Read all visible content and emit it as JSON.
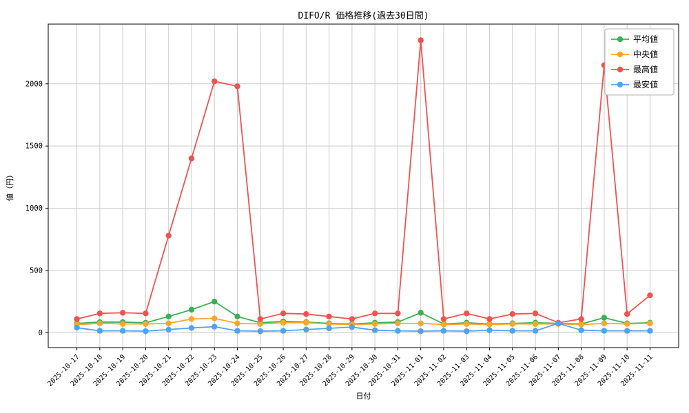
{
  "chart_data": {
    "type": "line",
    "title": "DIFO/R 価格推移(過去30日間)",
    "xlabel": "日付",
    "ylabel": "値（円）",
    "grid": true,
    "legend_position": "upper right",
    "ylim": [
      -120,
      2480
    ],
    "yticks": [
      0,
      500,
      1000,
      1500,
      2000
    ],
    "x_tick_labels": [
      "2025-10-17",
      "2025-10-18",
      "2025-10-19",
      "2025-10-20",
      "2025-10-21",
      "2025-10-22",
      "2025-10-23",
      "2025-10-24",
      "2025-10-25",
      "2025-10-26",
      "2025-10-27",
      "2025-10-28",
      "2025-10-29",
      "2025-10-30",
      "2025-10-31",
      "2025-11-01",
      "2025-11-02",
      "2025-11-03",
      "2025-11-04",
      "2025-11-05",
      "2025-11-06",
      "2025-11-07",
      "2025-11-08",
      "2025-11-09",
      "2025-11-10",
      "2025-11-11"
    ],
    "series": [
      {
        "key": "average",
        "name": "平均値",
        "color": "#3cb054",
        "values": [
          75,
          85,
          85,
          80,
          130,
          185,
          250,
          130,
          80,
          90,
          85,
          75,
          70,
          80,
          85,
          160,
          70,
          80,
          70,
          75,
          80,
          75,
          70,
          120,
          75,
          80
        ]
      },
      {
        "key": "median",
        "name": "中央値",
        "color": "#ffa726",
        "values": [
          65,
          75,
          70,
          70,
          75,
          110,
          115,
          75,
          70,
          80,
          80,
          70,
          65,
          70,
          75,
          75,
          65,
          70,
          65,
          70,
          70,
          70,
          65,
          75,
          70,
          75
        ]
      },
      {
        "key": "highest",
        "name": "最高値",
        "color": "#ef5350",
        "values": [
          110,
          155,
          160,
          155,
          780,
          1400,
          2020,
          1980,
          110,
          155,
          150,
          130,
          110,
          155,
          155,
          2350,
          110,
          155,
          110,
          150,
          155,
          80,
          110,
          2150,
          150,
          300
        ]
      },
      {
        "key": "lowest",
        "name": "最安値",
        "color": "#4da3f5",
        "values": [
          40,
          15,
          15,
          12,
          25,
          38,
          48,
          15,
          12,
          15,
          25,
          35,
          45,
          20,
          15,
          12,
          15,
          12,
          20,
          15,
          15,
          75,
          20,
          15,
          15,
          15
        ]
      }
    ],
    "colors": {
      "grid": "#cccccc",
      "axis": "#000000",
      "background": "#ffffff",
      "legend_border": "#b3b3b3"
    }
  }
}
